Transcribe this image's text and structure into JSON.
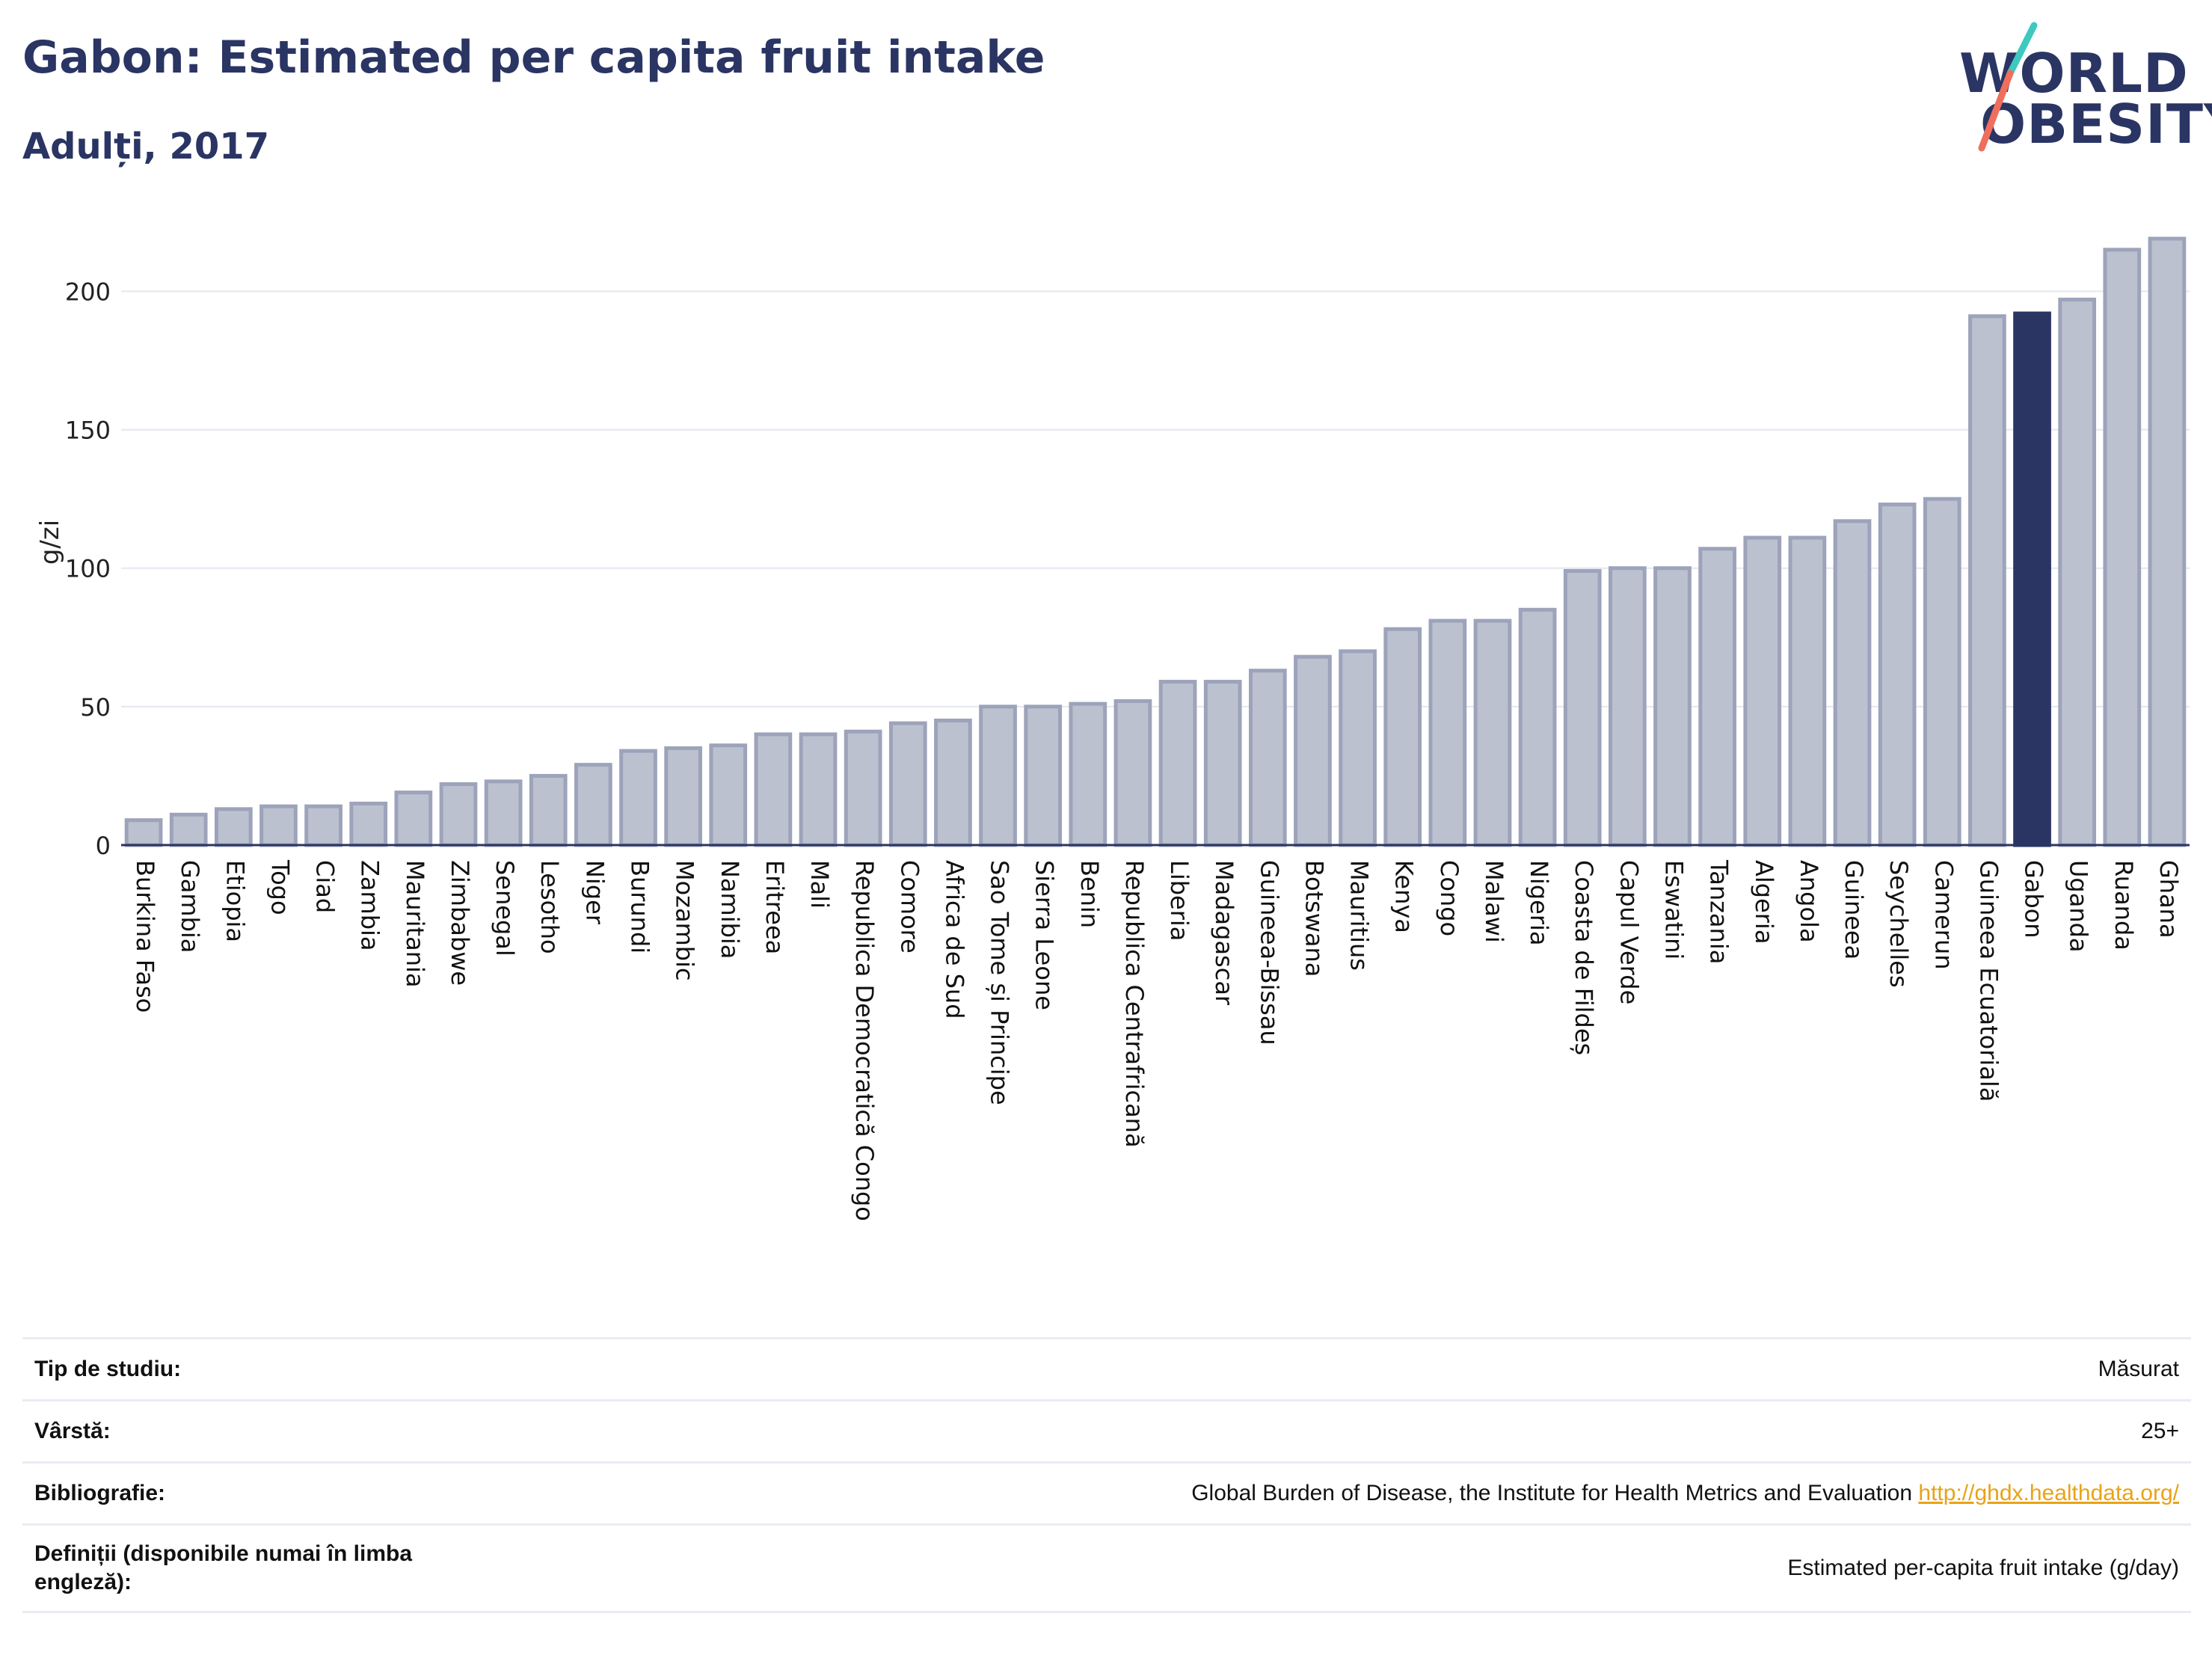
{
  "header": {
    "title": "Gabon: Estimated per capita fruit intake",
    "subtitle": "Adulți, 2017"
  },
  "logo": {
    "line1": "WORLD",
    "line2": "OBESITY"
  },
  "colors": {
    "highlight": "#2a3563",
    "bar_fill": "#bcc1d0",
    "bar_stroke": "#9ca3ba",
    "grid": "#e4e7ef",
    "text": "#2a3563",
    "logo_slash_teal": "#3ec9c0",
    "logo_slash_coral": "#f06e5c"
  },
  "chart_data": {
    "type": "bar",
    "ylabel": "g/zi",
    "ylim": [
      0,
      222
    ],
    "yticks": [
      0,
      50,
      100,
      150,
      200
    ],
    "grid": true,
    "highlight": "Gabon",
    "categories": [
      "Burkina Faso",
      "Gambia",
      "Etiopia",
      "Togo",
      "Ciad",
      "Zambia",
      "Mauritania",
      "Zimbabwe",
      "Senegal",
      "Lesotho",
      "Niger",
      "Burundi",
      "Mozambic",
      "Namibia",
      "Eritreea",
      "Mali",
      "Republica Democratică Congo",
      "Comore",
      "Africa de Sud",
      "Sao Tome și Principe",
      "Sierra Leone",
      "Benin",
      "Republica Centrafricană",
      "Liberia",
      "Madagascar",
      "Guineea-Bissau",
      "Botswana",
      "Mauritius",
      "Kenya",
      "Congo",
      "Malawi",
      "Nigeria",
      "Coasta de Fildeș",
      "Capul Verde",
      "Eswatini",
      "Tanzania",
      "Algeria",
      "Angola",
      "Guineea",
      "Seychelles",
      "Camerun",
      "Guineea Ecuatorială",
      "Gabon",
      "Uganda",
      "Ruanda",
      "Ghana"
    ],
    "values": [
      9,
      11,
      13,
      14,
      14,
      15,
      19,
      22,
      23,
      25,
      29,
      34,
      35,
      36,
      40,
      40,
      41,
      44,
      45,
      50,
      50,
      51,
      52,
      59,
      59,
      63,
      68,
      70,
      78,
      81,
      81,
      85,
      99,
      100,
      100,
      107,
      111,
      111,
      117,
      123,
      125,
      191,
      192,
      197,
      215,
      219
    ]
  },
  "info": {
    "rows": [
      {
        "label": "Tip de studiu:",
        "value": "Măsurat"
      },
      {
        "label": "Vârstă:",
        "value": "25+"
      },
      {
        "label": "Bibliografie:",
        "value": "Global Burden of Disease, the Institute for Health Metrics and Evaluation",
        "link": "http://ghdx.healthdata.org/"
      },
      {
        "label": "Definiții (disponibile numai în limba engleză):",
        "value": "Estimated per-capita fruit intake (g/day)"
      }
    ]
  }
}
